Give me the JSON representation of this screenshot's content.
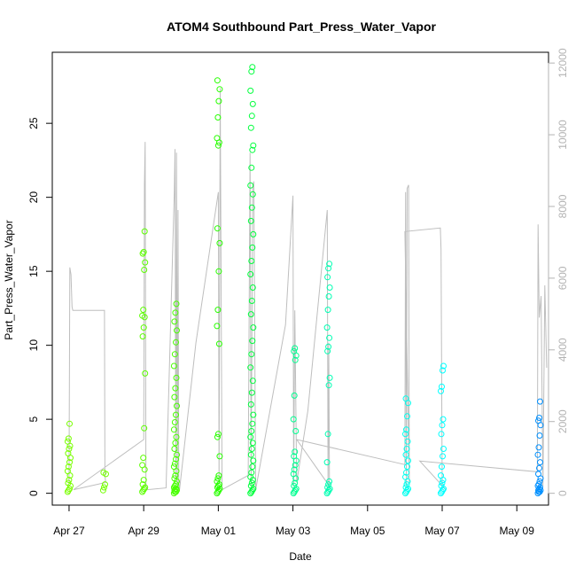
{
  "chart_data": {
    "type": "scatter",
    "title": "ATOM4 Southbound Part_Press_Water_Vapor",
    "xlabel": "Date",
    "ylabel": "Part_Press_Water_Vapor",
    "x_ticks": [
      "Apr 27",
      "Apr 29",
      "May 01",
      "May 03",
      "May 05",
      "May 07",
      "May 09"
    ],
    "x_tick_days": [
      0,
      2,
      4,
      6,
      8,
      10,
      12
    ],
    "xlim_days": [
      -0.45,
      12.85
    ],
    "y_ticks": [
      0,
      5,
      10,
      15,
      20,
      25
    ],
    "ylim": [
      -0.8,
      29.8
    ],
    "y2_ticks": [
      0,
      2000,
      4000,
      6000,
      8000,
      10000,
      12000
    ],
    "y2lim": [
      -330,
      12300
    ],
    "grid": false,
    "legend": "none",
    "point_colors": {
      "early": "#80ff00",
      "mid": "#00ff33",
      "late": "#00ffff",
      "end": "#0080ff"
    },
    "line_color": "#bebebe",
    "clusters": [
      {
        "day": 0.0,
        "vals": [
          0.1,
          0.2,
          0.3,
          0.5,
          0.7,
          0.9,
          1.2,
          1.5,
          1.8,
          2.1,
          2.4,
          2.7,
          3.0,
          3.2,
          3.5,
          3.7,
          4.7
        ],
        "color": "#79ff00"
      },
      {
        "day": 0.95,
        "vals": [
          0.2,
          0.4,
          0.6,
          1.3,
          1.4
        ],
        "color": "#74ff00"
      },
      {
        "day": 2.0,
        "vals": [
          0.1,
          0.2,
          0.3,
          0.4,
          0.6,
          0.9,
          1.6,
          1.9,
          2.4,
          4.4,
          8.1,
          10.6,
          11.2,
          11.9,
          12.0,
          12.4,
          15.1,
          15.6,
          16.2,
          16.3,
          17.7
        ],
        "color": "#5cff00"
      },
      {
        "day": 2.85,
        "vals": [
          0.0,
          0.1,
          0.1,
          0.2,
          0.2,
          0.3,
          0.3,
          0.4,
          0.5,
          0.6,
          0.8,
          1.0,
          1.2,
          1.5,
          1.8,
          2.0,
          2.3,
          2.6,
          3.0,
          3.4,
          3.8,
          4.3,
          4.8,
          5.3,
          5.9,
          6.5,
          7.1,
          7.8,
          8.6,
          9.4,
          10.2,
          11.0,
          11.6,
          12.2,
          12.8
        ],
        "color": "#48ff00"
      },
      {
        "day": 4.0,
        "vals": [
          0.0,
          0.1,
          0.2,
          0.3,
          0.4,
          0.5,
          0.6,
          0.8,
          1.0,
          1.2,
          2.5,
          3.8,
          4.0,
          10.1,
          11.3,
          12.4,
          15.0,
          16.9,
          17.9,
          23.5,
          23.7,
          24.0,
          25.4,
          26.5,
          27.3,
          27.9
        ],
        "color": "#28ff00"
      },
      {
        "day": 4.9,
        "vals": [
          0.0,
          0.1,
          0.2,
          0.3,
          0.5,
          0.7,
          0.9,
          1.1,
          1.4,
          1.8,
          2.2,
          2.6,
          3.0,
          3.4,
          3.8,
          4.2,
          4.7,
          5.3,
          6.0,
          6.8,
          7.6,
          8.5,
          9.4,
          10.3,
          11.2,
          12.1,
          13.0,
          13.9,
          14.8,
          15.7,
          16.6,
          17.5,
          18.4,
          19.3,
          20.2,
          20.8,
          22.0,
          23.2,
          23.5,
          24.7,
          25.5,
          26.3,
          27.2,
          28.5,
          28.8
        ],
        "color": "#00ff3c"
      },
      {
        "day": 6.05,
        "vals": [
          0.0,
          0.1,
          0.2,
          0.3,
          0.5,
          0.7,
          1.0,
          1.3,
          1.6,
          1.9,
          2.2,
          2.5,
          2.8,
          4.2,
          5.0,
          6.6,
          9.0,
          9.3,
          9.6,
          9.8
        ],
        "color": "#00ff91"
      },
      {
        "day": 6.95,
        "vals": [
          0.0,
          0.1,
          0.2,
          0.3,
          0.4,
          0.6,
          0.8,
          2.1,
          4.0,
          7.3,
          7.8,
          9.6,
          9.9,
          10.5,
          11.2,
          12.4,
          13.3,
          13.9,
          14.6,
          15.2,
          15.5
        ],
        "color": "#00ffb3"
      },
      {
        "day": 9.05,
        "vals": [
          0.0,
          0.1,
          0.2,
          0.3,
          0.4,
          0.6,
          0.8,
          1.1,
          1.4,
          1.8,
          2.2,
          2.6,
          3.0,
          3.5,
          4.0,
          4.3,
          5.2,
          6.1,
          6.4
        ],
        "color": "#00ffee"
      },
      {
        "day": 10.0,
        "vals": [
          0.0,
          0.1,
          0.2,
          0.3,
          0.5,
          0.7,
          0.9,
          1.2,
          1.8,
          2.5,
          3.0,
          4.0,
          4.6,
          5.0,
          6.9,
          7.2,
          8.3,
          8.6
        ],
        "color": "#00ffff"
      },
      {
        "day": 12.6,
        "vals": [
          0.0,
          0.1,
          0.1,
          0.2,
          0.2,
          0.3,
          0.4,
          0.5,
          0.6,
          0.8,
          1.0,
          1.3,
          1.7,
          2.1,
          2.6,
          3.1,
          3.9,
          4.6,
          4.9,
          5.1,
          6.2
        ],
        "color": "#0090ff"
      }
    ],
    "line_series": [
      {
        "day": 0.0,
        "y2": 300
      },
      {
        "day": 0.02,
        "y2": 6300
      },
      {
        "day": 0.05,
        "y2": 6100
      },
      {
        "day": 0.08,
        "y2": 5200
      },
      {
        "day": 0.1,
        "y2": 5100
      },
      {
        "day": 0.95,
        "y2": 5100
      },
      {
        "day": 0.96,
        "y2": 500
      },
      {
        "day": 0.98,
        "y2": 300
      },
      {
        "day": 0.12,
        "y2": 100
      },
      {
        "day": 2.0,
        "y2": 1500
      },
      {
        "day": 2.02,
        "y2": 8600
      },
      {
        "day": 2.04,
        "y2": 9800
      },
      {
        "day": 2.06,
        "y2": 200
      },
      {
        "day": 2.1,
        "y2": 100
      },
      {
        "day": 2.6,
        "y2": 150
      },
      {
        "day": 2.82,
        "y2": 8400
      },
      {
        "day": 2.84,
        "y2": 9600
      },
      {
        "day": 2.86,
        "y2": 400
      },
      {
        "day": 2.88,
        "y2": 9500
      },
      {
        "day": 2.9,
        "y2": 200
      },
      {
        "day": 2.92,
        "y2": 7900
      },
      {
        "day": 2.94,
        "y2": 300
      },
      {
        "day": 2.96,
        "y2": 100
      },
      {
        "day": 3.4,
        "y2": 4200
      },
      {
        "day": 4.0,
        "y2": 8400
      },
      {
        "day": 4.02,
        "y2": 300
      },
      {
        "day": 4.05,
        "y2": 11300
      },
      {
        "day": 4.1,
        "y2": 100
      },
      {
        "day": 4.8,
        "y2": 500
      },
      {
        "day": 4.85,
        "y2": 9500
      },
      {
        "day": 4.88,
        "y2": 200
      },
      {
        "day": 4.92,
        "y2": 8500
      },
      {
        "day": 4.95,
        "y2": 8700
      },
      {
        "day": 5.0,
        "y2": 100
      },
      {
        "day": 5.8,
        "y2": 4700
      },
      {
        "day": 6.0,
        "y2": 8300
      },
      {
        "day": 6.02,
        "y2": 200
      },
      {
        "day": 6.05,
        "y2": 5100
      },
      {
        "day": 6.1,
        "y2": 300
      },
      {
        "day": 6.4,
        "y2": 2300
      },
      {
        "day": 6.92,
        "y2": 7900
      },
      {
        "day": 6.94,
        "y2": 100
      },
      {
        "day": 6.96,
        "y2": 4200
      },
      {
        "day": 6.98,
        "y2": 200
      },
      {
        "day": 6.1,
        "y2": 1500
      },
      {
        "day": 9.0,
        "y2": 800
      },
      {
        "day": 9.02,
        "y2": 8400
      },
      {
        "day": 9.04,
        "y2": 200
      },
      {
        "day": 9.06,
        "y2": 8500
      },
      {
        "day": 9.1,
        "y2": 8600
      },
      {
        "day": 9.12,
        "y2": 300
      },
      {
        "day": 9.0,
        "y2": 7300
      },
      {
        "day": 9.95,
        "y2": 7400
      },
      {
        "day": 9.97,
        "y2": 6800
      },
      {
        "day": 10.0,
        "y2": 200
      },
      {
        "day": 10.1,
        "y2": 100
      },
      {
        "day": 9.4,
        "y2": 900
      },
      {
        "day": 12.55,
        "y2": 600
      },
      {
        "day": 12.57,
        "y2": 7500
      },
      {
        "day": 12.6,
        "y2": 4900
      },
      {
        "day": 12.65,
        "y2": 5500
      },
      {
        "day": 12.7,
        "y2": 200
      },
      {
        "day": 12.75,
        "y2": 5800
      },
      {
        "day": 12.8,
        "y2": 3500
      }
    ]
  }
}
